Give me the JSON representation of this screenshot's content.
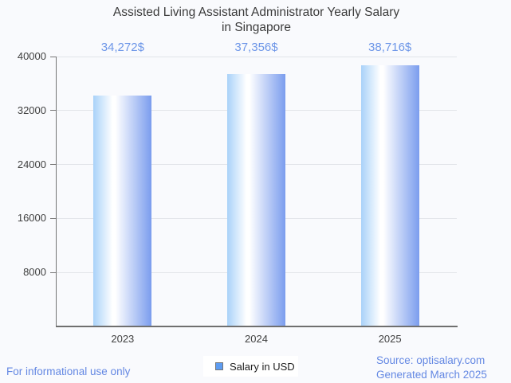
{
  "title": {
    "line1": "Assisted Living Assistant Administrator Yearly Salary",
    "line2": "in Singapore"
  },
  "chart_data": {
    "type": "bar",
    "title": "Assisted Living Assistant Administrator Yearly Salary in Singapore",
    "categories": [
      "2023",
      "2024",
      "2025"
    ],
    "values": [
      34272,
      37356,
      38716
    ],
    "value_labels": [
      "34,272$",
      "37,356$",
      "38,716$"
    ],
    "series_name": "Salary in USD",
    "xlabel": "",
    "ylabel": "",
    "ylim": [
      0,
      40000
    ],
    "yticks": [
      8000,
      16000,
      24000,
      32000,
      40000
    ],
    "grid": true,
    "legend_position": "bottom",
    "colors": {
      "bar_gradient_left": "#a9d2f9",
      "bar_gradient_mid": "#ffffff",
      "bar_gradient_right": "#7b9dee",
      "annotation_text": "#6d96e8"
    }
  },
  "legend": {
    "label": "Salary in USD",
    "marker_fill": "#5d9cf1"
  },
  "footer": {
    "left": "For informational use only",
    "source_line1": "Source: optisalary.com",
    "source_line2": "Generated March 2025"
  }
}
